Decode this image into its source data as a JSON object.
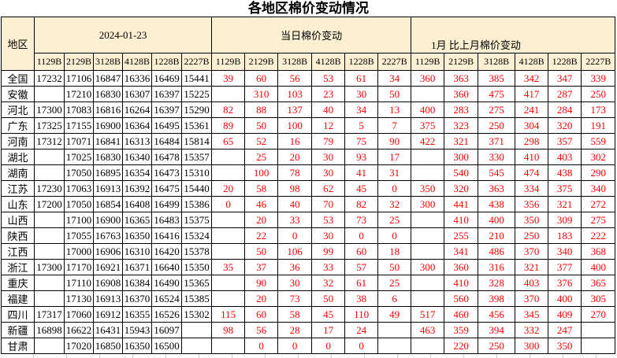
{
  "title": "各地区棉价变动情况",
  "colors": {
    "header_bg": "#FCEFD2",
    "change_text": "#FF0000",
    "border": "#000000",
    "price_text": "#000000"
  },
  "chart_data": {
    "type": "table",
    "title": "各地区棉价变动情况",
    "region_header": "地区",
    "column_groups": [
      "2024-01-23",
      "当日棉价变动",
      "1月 比上月棉价变动"
    ],
    "grade_columns": [
      "1129B",
      "2129B",
      "3128B",
      "4128B",
      "1228B",
      "2227B"
    ],
    "rows": [
      {
        "region": "全国",
        "prices": [
          17232,
          17106,
          16847,
          16336,
          16469,
          15441
        ],
        "daily_change": [
          39,
          60,
          56,
          53,
          61,
          34
        ],
        "monthly_change": [
          360,
          363,
          385,
          342,
          347,
          339
        ]
      },
      {
        "region": "安徽",
        "prices": [
          "",
          17210,
          16830,
          16307,
          16397,
          15225
        ],
        "daily_change": [
          "",
          310,
          103,
          23,
          30,
          50
        ],
        "monthly_change": [
          "",
          360,
          475,
          417,
          287,
          250
        ]
      },
      {
        "region": "河北",
        "prices": [
          17300,
          17083,
          16816,
          16264,
          16397,
          15290
        ],
        "daily_change": [
          82,
          88,
          137,
          40,
          34,
          13
        ],
        "monthly_change": [
          400,
          283,
          275,
          241,
          284,
          173
        ]
      },
      {
        "region": "广东",
        "prices": [
          17325,
          17155,
          16900,
          16364,
          16495,
          15361
        ],
        "daily_change": [
          89,
          50,
          100,
          12,
          5,
          7
        ],
        "monthly_change": [
          375,
          323,
          250,
          304,
          320,
          191
        ]
      },
      {
        "region": "河南",
        "prices": [
          17312,
          17071,
          16841,
          16313,
          16484,
          15814
        ],
        "daily_change": [
          65,
          52,
          16,
          79,
          75,
          90
        ],
        "monthly_change": [
          422,
          321,
          371,
          298,
          357,
          559
        ]
      },
      {
        "region": "湖北",
        "prices": [
          "",
          17025,
          16830,
          16340,
          16478,
          15357
        ],
        "daily_change": [
          "",
          25,
          20,
          30,
          93,
          17
        ],
        "monthly_change": [
          "",
          300,
          330,
          410,
          403,
          302
        ]
      },
      {
        "region": "湖南",
        "prices": [
          "",
          17050,
          16895,
          16354,
          16473,
          15310
        ],
        "daily_change": [
          "",
          100,
          78,
          30,
          41,
          31
        ],
        "monthly_change": [
          "",
          540,
          545,
          474,
          438,
          290
        ]
      },
      {
        "region": "江苏",
        "prices": [
          17230,
          17063,
          16913,
          16392,
          16475,
          15440
        ],
        "daily_change": [
          20,
          58,
          98,
          62,
          45,
          0
        ],
        "monthly_change": [
          350,
          320,
          363,
          334,
          375,
          340
        ]
      },
      {
        "region": "山东",
        "prices": [
          17200,
          17050,
          16854,
          16408,
          16499,
          15386
        ],
        "daily_change": [
          0,
          46,
          40,
          70,
          82,
          32
        ],
        "monthly_change": [
          300,
          441,
          438,
          356,
          321,
          272
        ]
      },
      {
        "region": "山西",
        "prices": [
          "",
          17100,
          16900,
          16365,
          16483,
          15375
        ],
        "daily_change": [
          "",
          20,
          33,
          53,
          73,
          25
        ],
        "monthly_change": [
          "",
          410,
          400,
          350,
          309,
          275
        ]
      },
      {
        "region": "陕西",
        "prices": [
          "",
          17055,
          16763,
          16350,
          16416,
          15324
        ],
        "daily_change": [
          "",
          22,
          0,
          30,
          0,
          0
        ],
        "monthly_change": [
          "",
          255,
          210,
          250,
          183,
          222
        ]
      },
      {
        "region": "江西",
        "prices": [
          "",
          17000,
          16906,
          16310,
          16420,
          15378
        ],
        "daily_change": [
          "",
          50,
          106,
          99,
          60,
          18
        ],
        "monthly_change": [
          "",
          341,
          486,
          370,
          340,
          368
        ]
      },
      {
        "region": "浙江",
        "prices": [
          17300,
          17170,
          16921,
          16371,
          16640,
          15350
        ],
        "daily_change": [
          35,
          37,
          36,
          33,
          57,
          50
        ],
        "monthly_change": [
          300,
          360,
          316,
          321,
          377,
          400
        ]
      },
      {
        "region": "重庆",
        "prices": [
          "",
          17110,
          16908,
          16384,
          16490,
          15365
        ],
        "daily_change": [
          "",
          90,
          30,
          32,
          61,
          25
        ],
        "monthly_change": [
          "",
          410,
          328,
          403,
          376,
          365
        ]
      },
      {
        "region": "福建",
        "prices": [
          "",
          17130,
          16913,
          16370,
          16524,
          15385
        ],
        "daily_change": [
          "",
          20,
          73,
          50,
          38,
          6
        ],
        "monthly_change": [
          "",
          560,
          398,
          370,
          400,
          305
        ]
      },
      {
        "region": "四川",
        "prices": [
          17317,
          17060,
          16912,
          16355,
          16526,
          15302
        ],
        "daily_change": [
          115,
          60,
          58,
          45,
          110,
          49
        ],
        "monthly_change": [
          517,
          460,
          456,
          345,
          409,
          270
        ]
      },
      {
        "region": "新疆",
        "prices": [
          16898,
          16622,
          16431,
          15943,
          16097,
          ""
        ],
        "daily_change": [
          98,
          56,
          28,
          17,
          24,
          ""
        ],
        "monthly_change": [
          463,
          359,
          394,
          332,
          247,
          ""
        ]
      },
      {
        "region": "甘肃",
        "prices": [
          "",
          17020,
          16850,
          16350,
          16500,
          ""
        ],
        "daily_change": [
          "",
          0,
          0,
          0,
          0,
          ""
        ],
        "monthly_change": [
          "",
          220,
          250,
          300,
          350,
          ""
        ]
      }
    ]
  }
}
